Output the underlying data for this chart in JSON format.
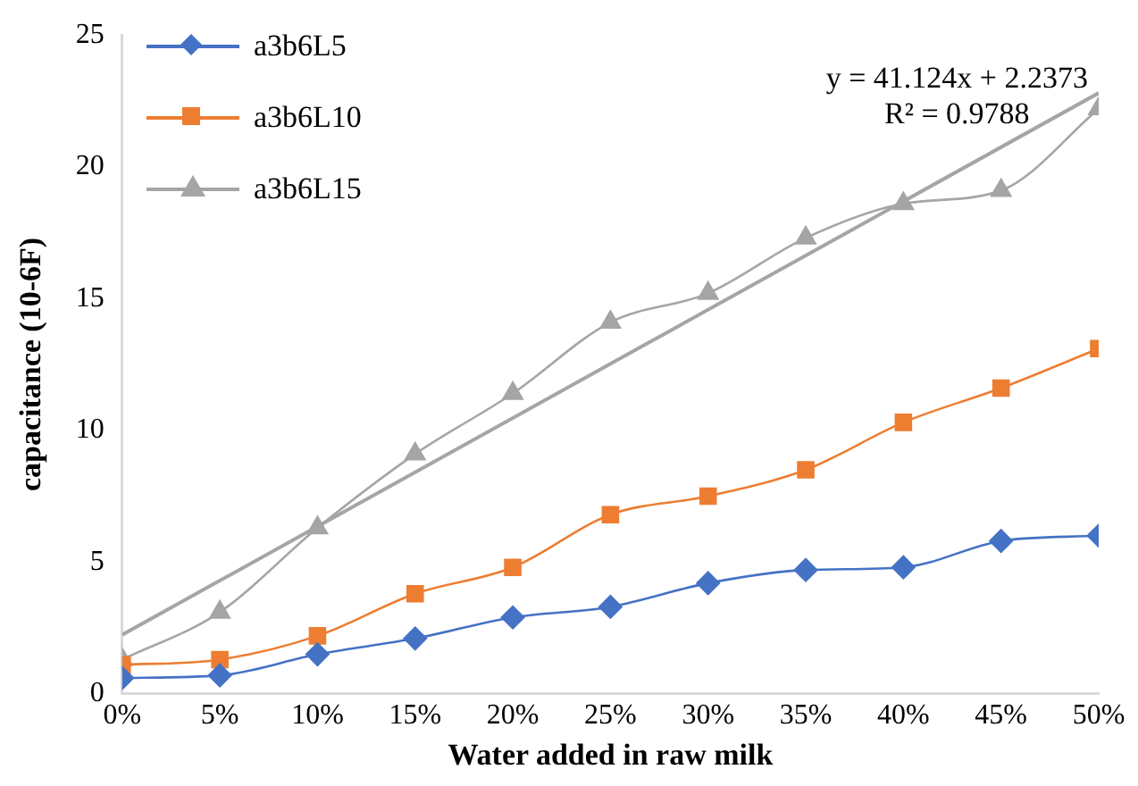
{
  "chart_data": {
    "type": "line",
    "xlabel": "Water added in raw milk",
    "ylabel": "capacitance (10-6F)",
    "x": [
      0,
      0.05,
      0.1,
      0.15,
      0.2,
      0.25,
      0.3,
      0.35,
      0.4,
      0.45,
      0.5
    ],
    "xlim": [
      0,
      0.5
    ],
    "xticks": [
      {
        "value": 0,
        "label": "0%"
      },
      {
        "value": 0.05,
        "label": "5%"
      },
      {
        "value": 0.1,
        "label": "10%"
      },
      {
        "value": 0.15,
        "label": "15%"
      },
      {
        "value": 0.2,
        "label": "20%"
      },
      {
        "value": 0.25,
        "label": "25%"
      },
      {
        "value": 0.3,
        "label": "30%"
      },
      {
        "value": 0.35,
        "label": "35%"
      },
      {
        "value": 0.4,
        "label": "40%"
      },
      {
        "value": 0.45,
        "label": "45%"
      },
      {
        "value": 0.5,
        "label": "50%"
      }
    ],
    "ylim": [
      0,
      25
    ],
    "yticks": [
      0,
      5,
      10,
      15,
      20,
      25
    ],
    "grid": false,
    "legend": "top left",
    "series": [
      {
        "name": "a3b6L5",
        "color": "#4472c4",
        "marker": "diamond",
        "values": [
          0.6,
          0.7,
          1.5,
          2.1,
          2.9,
          3.3,
          4.2,
          4.7,
          4.8,
          5.8,
          6.0
        ]
      },
      {
        "name": "a3b6L10",
        "color": "#ed7d31",
        "marker": "square",
        "values": [
          1.1,
          1.3,
          2.2,
          3.8,
          4.8,
          6.8,
          7.5,
          8.5,
          10.3,
          11.6,
          13.1
        ]
      },
      {
        "name": "a3b6L15",
        "color": "#a5a5a5",
        "marker": "triangle",
        "values": [
          1.3,
          3.1,
          6.3,
          9.1,
          11.4,
          14.1,
          15.2,
          17.3,
          18.6,
          19.1,
          22.2
        ]
      },
      {
        "type": "line",
        "color": "#a5a5a5",
        "marker": "none",
        "x": [
          0,
          0.5
        ],
        "values": [
          2.24,
          22.8
        ]
      }
    ],
    "annotations": [
      "y = 41.124x + 2.2373",
      "R² = 0.9788"
    ]
  }
}
